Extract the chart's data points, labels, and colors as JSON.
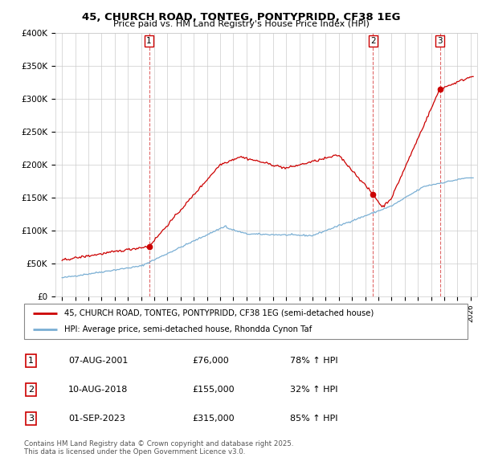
{
  "title_line1": "45, CHURCH ROAD, TONTEG, PONTYPRIDD, CF38 1EG",
  "title_line2": "Price paid vs. HM Land Registry's House Price Index (HPI)",
  "ylim": [
    0,
    400000
  ],
  "yticks": [
    0,
    50000,
    100000,
    150000,
    200000,
    250000,
    300000,
    350000,
    400000
  ],
  "ytick_labels": [
    "£0",
    "£50K",
    "£100K",
    "£150K",
    "£200K",
    "£250K",
    "£300K",
    "£350K",
    "£400K"
  ],
  "xmin": 1994.5,
  "xmax": 2026.5,
  "sale_dates": [
    2001.604,
    2018.604,
    2023.667
  ],
  "sale_prices": [
    76000,
    155000,
    315000
  ],
  "sale_labels": [
    "1",
    "2",
    "3"
  ],
  "sale_info": [
    {
      "num": "1",
      "date": "07-AUG-2001",
      "price": "£76,000",
      "hpi": "78% ↑ HPI"
    },
    {
      "num": "2",
      "date": "10-AUG-2018",
      "price": "£155,000",
      "hpi": "32% ↑ HPI"
    },
    {
      "num": "3",
      "date": "01-SEP-2023",
      "price": "£315,000",
      "hpi": "85% ↑ HPI"
    }
  ],
  "red_color": "#cc0000",
  "blue_color": "#7aafd4",
  "legend_label_red": "45, CHURCH ROAD, TONTEG, PONTYPRIDD, CF38 1EG (semi-detached house)",
  "legend_label_blue": "HPI: Average price, semi-detached house, Rhondda Cynon Taf",
  "footer": "Contains HM Land Registry data © Crown copyright and database right 2025.\nThis data is licensed under the Open Government Licence v3.0."
}
